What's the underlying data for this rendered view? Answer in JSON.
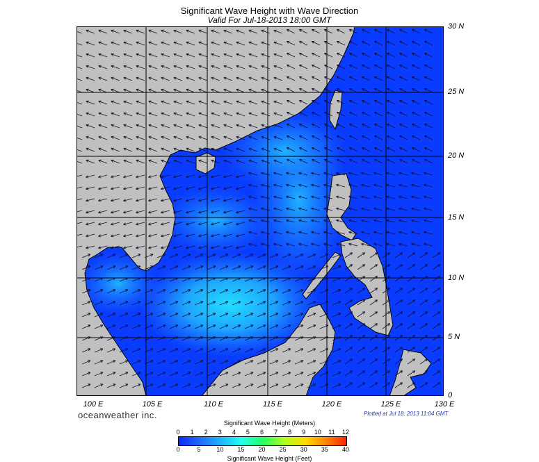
{
  "header": {
    "title": "Significant Wave Height with Wave Direction",
    "subtitle": "Valid For Jul-18-2013 18:00 GMT"
  },
  "map": {
    "lat_labels": [
      "30 N",
      "25 N",
      "20 N",
      "15 N",
      "10 N",
      "5 N",
      "0"
    ],
    "lon_labels": [
      "100 E",
      "105 E",
      "110 E",
      "115 E",
      "120 E",
      "125 E",
      "130 E"
    ],
    "land_color": "#c0c0c0",
    "ocean_low_color": "#0a3cff",
    "ocean_mid_color": "#1e90ff",
    "ocean_high_color": "#22ddff",
    "arrow_color": "#101030"
  },
  "footer": {
    "brand": "oceanweather inc.",
    "plotted": "Plotted at Jul 18, 2013 11:04 GMT"
  },
  "colorbar": {
    "meters_title": "Significant Wave Height (Meters)",
    "feet_title": "Significant Wave Height (Feet)",
    "meter_ticks": [
      "0",
      "1",
      "2",
      "3",
      "4",
      "5",
      "6",
      "7",
      "8",
      "9",
      "10",
      "11",
      "12"
    ],
    "feet_ticks": [
      "0",
      "5",
      "10",
      "15",
      "20",
      "25",
      "30",
      "35",
      "40"
    ],
    "colors": [
      "#0a2cff",
      "#1e6cff",
      "#1eb4ff",
      "#22ffee",
      "#22ff66",
      "#aaff22",
      "#ffdd00",
      "#ff8800",
      "#ff2200"
    ]
  }
}
